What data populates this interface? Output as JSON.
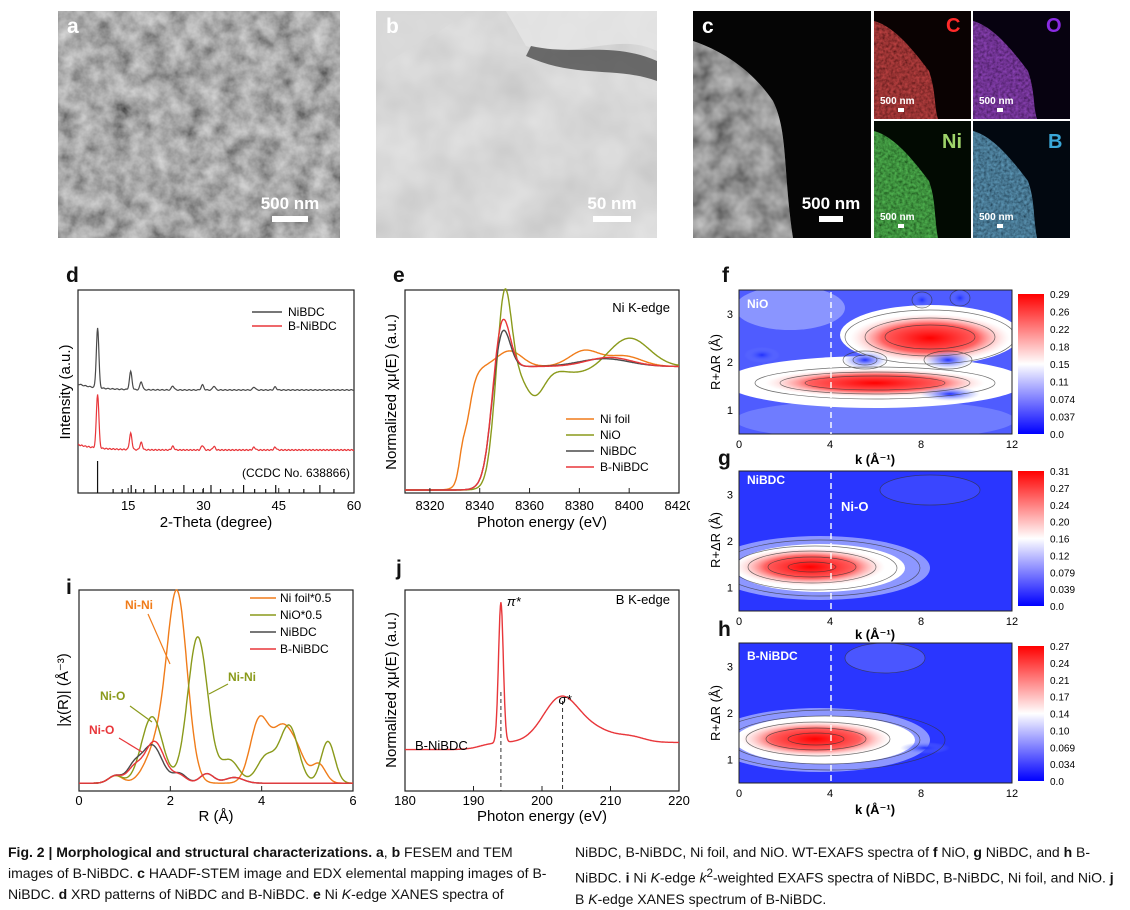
{
  "figure": {
    "number": "Fig. 2",
    "title": "Morphological and structural characterizations.",
    "caption_left": [
      [
        " a",
        ", "
      ],
      [
        "b",
        " FESEM and TEM images of B-NiBDC. "
      ],
      [
        "c",
        " HAADF-STEM image and EDX elemental mapping images of B-NiBDC. "
      ],
      [
        "d",
        " XRD patterns of NiBDC and B-NiBDC. "
      ],
      [
        "e",
        " Ni "
      ]
    ],
    "caption_full": "a, b FESEM and TEM images of B-NiBDC. c HAADF-STEM image and EDX elemental mapping images of B-NiBDC. d XRD patterns of NiBDC and B-NiBDC. e Ni K-edge XANES spectra of NiBDC, B-NiBDC, Ni foil, and NiO. WT-EXAFS spectra of f NiO, g NiBDC, and h B-NiBDC. i Ni K-edge k2-weighted EXAFS spectra of NiBDC, B-NiBDC, Ni foil, and NiO. j B K-edge XANES spectrum of B-NiBDC.",
    "caption_lines_left": [
      "images of B-NiBDC.",
      "B-NiBDC.",
      "XRD patterns of NiBDC and B-NiBDC.",
      "Ni",
      "K",
      "-edge XANES spectra of"
    ],
    "caption_lines_right": [
      "NiBDC, B-NiBDC, Ni foil, and NiO. WT-EXAFS spectra of",
      "NiO,",
      "NiBDC, and",
      "B-NiBDC.",
      "Ni",
      "K",
      "-edge",
      "-weighted EXAFS spectra of NiBDC, B-NiBDC, Ni foil, and",
      "NiO.",
      "B",
      "K",
      "-edge XANES spectrum of B-NiBDC."
    ],
    "cap_words": {
      "fesem": "FESEM and TEM",
      "haadf": "HAADF-STEM image and EDX elemental mapping images of",
      "k2": "k",
      "two": "2",
      "nio_a": "NiO"
    }
  },
  "panels": {
    "a": {
      "label": "a",
      "scale": "500 nm"
    },
    "b": {
      "label": "b",
      "scale": "50 nm"
    },
    "c": {
      "label": "c",
      "scale": "500 nm",
      "maps": [
        {
          "el": "C",
          "color": "#ff2a2a",
          "scale": "500 nm"
        },
        {
          "el": "O",
          "color": "#8a2be2",
          "scale": "500 nm"
        },
        {
          "el": "Ni",
          "color": "#9fd46a",
          "scale": "500 nm"
        },
        {
          "el": "B",
          "color": "#3aa7d8",
          "scale": "500 nm"
        }
      ]
    },
    "d": {
      "label": "d"
    },
    "e": {
      "label": "e"
    },
    "f": {
      "label": "f"
    },
    "g": {
      "label": "g"
    },
    "h": {
      "label": "h"
    },
    "i": {
      "label": "i"
    },
    "j": {
      "label": "j"
    }
  },
  "chart_data": [
    {
      "id": "d",
      "type": "line",
      "title": "",
      "xlabel": "2-Theta (degree)",
      "ylabel": "Intensity (a.u.)",
      "xlim": [
        5,
        60
      ],
      "xticks": [
        15,
        30,
        45,
        60
      ],
      "annotation": "(CCDC No. 638866)",
      "series": [
        {
          "name": "NiBDC",
          "color": "#4a4a4a"
        },
        {
          "name": "B-NiBDC",
          "color": "#e8363a"
        }
      ],
      "peaks_deg": [
        8.9,
        15.5,
        17.6,
        23.9,
        29.8,
        32.1,
        40.1,
        44.3
      ],
      "reference_sticks_deg": [
        8.9,
        12.0,
        13.8,
        15.6,
        16.5,
        18.1,
        20.4,
        22.0,
        24.0,
        26.1,
        28.0,
        29.9,
        31.5,
        33.4,
        35.9,
        38.0,
        40.2,
        42.4,
        44.4,
        47.1,
        50.0,
        53.2,
        56.0
      ]
    },
    {
      "id": "e",
      "type": "line",
      "title": "Ni K-edge",
      "xlabel": "Photon energy (eV)",
      "ylabel": "Normalized χμ(E) (a.u.)",
      "xlim": [
        8310,
        8420
      ],
      "xticks": [
        8320,
        8340,
        8360,
        8380,
        8400,
        8420
      ],
      "series": [
        {
          "name": "Ni foil",
          "color": "#f07c1a"
        },
        {
          "name": "NiO",
          "color": "#8a9a1b"
        },
        {
          "name": "NiBDC",
          "color": "#4a4a4a"
        },
        {
          "name": "B-NiBDC",
          "color": "#e8363a"
        }
      ]
    },
    {
      "id": "f",
      "type": "heatmap",
      "title": "NiO",
      "xlabel": "k (Å⁻¹)",
      "ylabel": "R+ΔR (Å)",
      "xlim": [
        0,
        12
      ],
      "ylim": [
        0.5,
        3.5
      ],
      "xticks": [
        0,
        4,
        8,
        12
      ],
      "yticks": [
        1,
        2,
        3
      ],
      "colorbar": [
        "0.29",
        "0.26",
        "0.22",
        "0.18",
        "0.15",
        "0.11",
        "0.074",
        "0.037",
        "0.0"
      ]
    },
    {
      "id": "g",
      "type": "heatmap",
      "title": "NiBDC",
      "annotation": "Ni-O",
      "xlabel": "k (Å⁻¹)",
      "ylabel": "R+ΔR (Å)",
      "xlim": [
        0,
        12
      ],
      "ylim": [
        0.5,
        3.5
      ],
      "xticks": [
        0,
        4,
        8,
        12
      ],
      "yticks": [
        1,
        2,
        3
      ],
      "colorbar": [
        "0.31",
        "0.27",
        "0.24",
        "0.20",
        "0.16",
        "0.12",
        "0.079",
        "0.039",
        "0.0"
      ]
    },
    {
      "id": "h",
      "type": "heatmap",
      "title": "B-NiBDC",
      "xlabel": "k (Å⁻¹)",
      "ylabel": "R+ΔR (Å)",
      "xlim": [
        0,
        12
      ],
      "ylim": [
        0.5,
        3.5
      ],
      "xticks": [
        0,
        4,
        8,
        12
      ],
      "yticks": [
        1,
        2,
        3
      ],
      "colorbar": [
        "0.27",
        "0.24",
        "0.21",
        "0.17",
        "0.14",
        "0.10",
        "0.069",
        "0.034",
        "0.0"
      ]
    },
    {
      "id": "i",
      "type": "line",
      "title": "",
      "xlabel": "R (Å)",
      "ylabel": "|χ(R)| (Å⁻³)",
      "xlim": [
        0,
        6
      ],
      "xticks": [
        0,
        2,
        4,
        6
      ],
      "series": [
        {
          "name": "Ni foil*0.5",
          "color": "#f07c1a"
        },
        {
          "name": "NiO*0.5",
          "color": "#8a9a1b"
        },
        {
          "name": "NiBDC",
          "color": "#4a4a4a"
        },
        {
          "name": "B-NiBDC",
          "color": "#e8363a"
        }
      ],
      "annotations": [
        {
          "text": "Ni-Ni",
          "color": "#f07c1a"
        },
        {
          "text": "Ni-Ni",
          "color": "#8a9a1b"
        },
        {
          "text": "Ni-O",
          "color": "#8a9a1b"
        },
        {
          "text": "Ni-O",
          "color": "#e8363a"
        }
      ]
    },
    {
      "id": "j",
      "type": "line",
      "title": "B K-edge",
      "xlabel": "Photon energy (eV)",
      "ylabel": "Normalized χμ(E) (a.u.)",
      "xlim": [
        180,
        220
      ],
      "xticks": [
        180,
        190,
        200,
        210,
        220
      ],
      "series": [
        {
          "name": "B-NiBDC",
          "color": "#e8363a"
        }
      ],
      "peaks": [
        {
          "label": "π*",
          "x": 194
        },
        {
          "label": "σ*",
          "x": 203
        }
      ]
    }
  ]
}
